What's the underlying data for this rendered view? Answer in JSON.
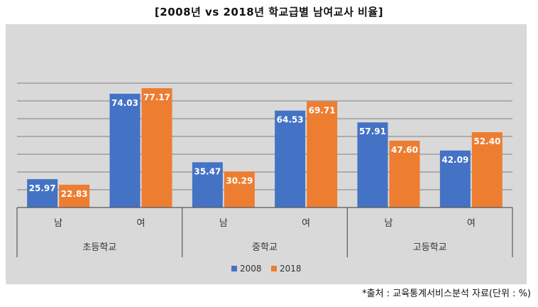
{
  "title": "[2008년 vs 2018년 학교급별 남여교사 비율]",
  "source_note": "*출처 : 교육통계서비스분석 자료(단위 : %)",
  "chart_data": {
    "type": "bar",
    "groups": [
      {
        "name": "초등학교",
        "categories": [
          "남",
          "여"
        ]
      },
      {
        "name": "중학교",
        "categories": [
          "남",
          "여"
        ]
      },
      {
        "name": "고등학교",
        "categories": [
          "남",
          "여"
        ]
      }
    ],
    "series": [
      {
        "name": "2008",
        "color": "#4472C4",
        "values": [
          25.97,
          74.03,
          35.47,
          64.53,
          57.91,
          42.09
        ]
      },
      {
        "name": "2018",
        "color": "#ED7D31",
        "values": [
          22.83,
          77.17,
          30.29,
          69.71,
          47.6,
          52.4
        ]
      }
    ],
    "value_labels": {
      "2008": [
        "25.97",
        "74.03",
        "35.47",
        "64.53",
        "57.91",
        "42.09"
      ],
      "2018": [
        "22.83",
        "77.17",
        "30.29",
        "69.71",
        "47.60",
        "52.40"
      ]
    },
    "ylim": [
      10,
      80
    ],
    "grid": true,
    "legend_position": "bottom",
    "plot_background": "#D9D9D9",
    "grid_color": "#7F7F7F"
  }
}
